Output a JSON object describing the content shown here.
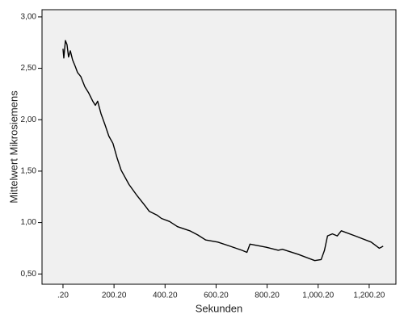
{
  "chart_data": {
    "type": "line",
    "x_label": "Sekunden",
    "y_label": "Mittelwert Mikrosiemens",
    "x": [
      0.2,
      3.4,
      9.7,
      16,
      22,
      29,
      38,
      48,
      57,
      70,
      86,
      101,
      117,
      127,
      136,
      149,
      165,
      180,
      196,
      212,
      228,
      259,
      291,
      323,
      338,
      370,
      386,
      418,
      449,
      497,
      528,
      560,
      607,
      655,
      702,
      721,
      733,
      797,
      844,
      860,
      923,
      987,
      1012,
      1025,
      1037,
      1056,
      1075,
      1091,
      1145,
      1208,
      1240,
      1255
    ],
    "series": [
      {
        "name": "Mittelwert Mikrosiemens",
        "color": "#000000",
        "values": [
          2.69,
          2.6,
          2.77,
          2.73,
          2.61,
          2.67,
          2.58,
          2.52,
          2.46,
          2.42,
          2.32,
          2.26,
          2.18,
          2.14,
          2.18,
          2.06,
          1.95,
          1.84,
          1.77,
          1.63,
          1.51,
          1.37,
          1.26,
          1.16,
          1.11,
          1.07,
          1.04,
          1.01,
          0.96,
          0.92,
          0.88,
          0.83,
          0.81,
          0.77,
          0.73,
          0.71,
          0.79,
          0.76,
          0.73,
          0.74,
          0.69,
          0.63,
          0.64,
          0.73,
          0.87,
          0.89,
          0.87,
          0.92,
          0.87,
          0.81,
          0.75,
          0.77
        ]
      }
    ],
    "xlim": [
      -82,
      1305
    ],
    "ylim": [
      0.4,
      3.07
    ],
    "xticks": [
      {
        "value": 0.2,
        "label": ".20"
      },
      {
        "value": 200.2,
        "label": "200.20"
      },
      {
        "value": 400.2,
        "label": "400.20"
      },
      {
        "value": 600.2,
        "label": "600.20"
      },
      {
        "value": 800.2,
        "label": "800.20"
      },
      {
        "value": 1000.2,
        "label": "1,000.20"
      },
      {
        "value": 1200.2,
        "label": "1,200.20"
      }
    ],
    "yticks": [
      {
        "value": 0.5,
        "label": "0,50"
      },
      {
        "value": 1.0,
        "label": "1,00"
      },
      {
        "value": 1.5,
        "label": "1,50"
      },
      {
        "value": 2.0,
        "label": "2,00"
      },
      {
        "value": 2.5,
        "label": "2,50"
      },
      {
        "value": 3.0,
        "label": "3,00"
      }
    ],
    "plot_background": "#f0f0f0"
  }
}
